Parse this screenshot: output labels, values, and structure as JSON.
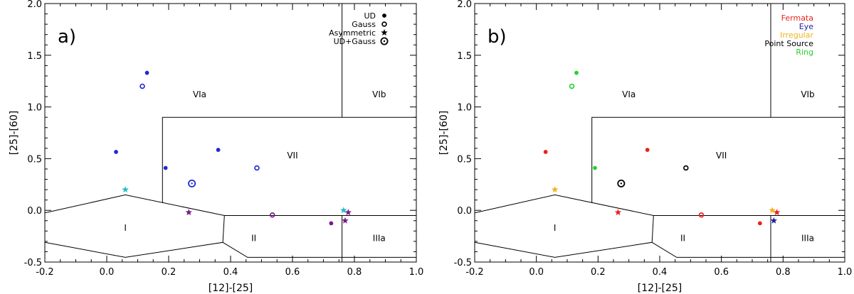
{
  "chart_data": [
    {
      "type": "scatter",
      "panel_label": "a)",
      "xlabel": "[12]-[25]",
      "ylabel": "[25]-[60]",
      "xlim": [
        -0.2,
        1.0
      ],
      "ylim": [
        -0.5,
        2.0
      ],
      "xticks": [
        "-0.2",
        "0.0",
        "0.2",
        "0.4",
        "0.6",
        "0.8",
        "1.0"
      ],
      "yticks": [
        "-0.5",
        "0.0",
        "0.5",
        "1.0",
        "1.5",
        "2.0"
      ],
      "regions": [
        "I",
        "II",
        "IIIa",
        "VIa",
        "VIb",
        "VII"
      ],
      "legend": [
        {
          "label": "UD",
          "marker": "dot"
        },
        {
          "label": "Gauss",
          "marker": "ring"
        },
        {
          "label": "Asymmetric",
          "marker": "star"
        },
        {
          "label": "UD+Gauss",
          "marker": "bigring"
        }
      ],
      "points": [
        {
          "x": 0.13,
          "y": 1.33,
          "marker": "dot",
          "color": "#1f2bd6"
        },
        {
          "x": 0.115,
          "y": 1.2,
          "marker": "ring",
          "color": "#1f2bd6"
        },
        {
          "x": 0.03,
          "y": 0.565,
          "marker": "dot",
          "color": "#1f2bd6"
        },
        {
          "x": 0.36,
          "y": 0.585,
          "marker": "dot",
          "color": "#1f2bd6"
        },
        {
          "x": 0.19,
          "y": 0.41,
          "marker": "dot",
          "color": "#1f2bd6"
        },
        {
          "x": 0.485,
          "y": 0.41,
          "marker": "ring",
          "color": "#1f2bd6"
        },
        {
          "x": 0.275,
          "y": 0.26,
          "marker": "bigring",
          "color": "#1f2bd6"
        },
        {
          "x": 0.06,
          "y": 0.2,
          "marker": "star",
          "color": "#1fbfc6"
        },
        {
          "x": 0.265,
          "y": -0.02,
          "marker": "star",
          "color": "#7a1a8c"
        },
        {
          "x": 0.535,
          "y": -0.045,
          "marker": "ring",
          "color": "#7a1a8c"
        },
        {
          "x": 0.765,
          "y": 0.0,
          "marker": "star",
          "color": "#1fbfc6"
        },
        {
          "x": 0.78,
          "y": -0.02,
          "marker": "star",
          "color": "#7a1a8c"
        },
        {
          "x": 0.77,
          "y": -0.1,
          "marker": "star",
          "color": "#7a1a8c"
        },
        {
          "x": 0.725,
          "y": -0.125,
          "marker": "dot",
          "color": "#7a1a8c"
        }
      ]
    },
    {
      "type": "scatter",
      "panel_label": "b)",
      "xlabel": "[12]-[25]",
      "ylabel": "[25]-[60]",
      "xlim": [
        -0.2,
        1.0
      ],
      "ylim": [
        -0.5,
        2.0
      ],
      "xticks": [
        "-0.2",
        "0.0",
        "0.2",
        "0.4",
        "0.6",
        "0.8",
        "1.0"
      ],
      "yticks": [
        "-0.5",
        "0.0",
        "0.5",
        "1.0",
        "1.5",
        "2.0"
      ],
      "regions": [
        "I",
        "II",
        "IIIa",
        "VIa",
        "VIb",
        "VII"
      ],
      "legend": [
        {
          "label": "Fermata",
          "color": "#e8231b"
        },
        {
          "label": "Eye",
          "color": "#1f1f9c"
        },
        {
          "label": "Irregular",
          "color": "#f0b21b"
        },
        {
          "label": "Point Source",
          "color": "#000000"
        },
        {
          "label": "Ring",
          "color": "#22d42e"
        }
      ],
      "points": [
        {
          "x": 0.13,
          "y": 1.33,
          "marker": "dot",
          "color": "#22d42e"
        },
        {
          "x": 0.115,
          "y": 1.2,
          "marker": "ring",
          "color": "#22d42e"
        },
        {
          "x": 0.03,
          "y": 0.565,
          "marker": "dot",
          "color": "#e8231b"
        },
        {
          "x": 0.36,
          "y": 0.585,
          "marker": "dot",
          "color": "#e8231b"
        },
        {
          "x": 0.19,
          "y": 0.41,
          "marker": "dot",
          "color": "#22d42e"
        },
        {
          "x": 0.485,
          "y": 0.41,
          "marker": "ring",
          "color": "#000000"
        },
        {
          "x": 0.275,
          "y": 0.26,
          "marker": "bigring",
          "color": "#000000"
        },
        {
          "x": 0.06,
          "y": 0.2,
          "marker": "star",
          "color": "#f0b21b"
        },
        {
          "x": 0.265,
          "y": -0.02,
          "marker": "star",
          "color": "#e8231b"
        },
        {
          "x": 0.535,
          "y": -0.045,
          "marker": "ring",
          "color": "#e8231b"
        },
        {
          "x": 0.765,
          "y": 0.0,
          "marker": "star",
          "color": "#f0b21b"
        },
        {
          "x": 0.78,
          "y": -0.02,
          "marker": "star",
          "color": "#e8231b"
        },
        {
          "x": 0.77,
          "y": -0.1,
          "marker": "star",
          "color": "#1f1f9c"
        },
        {
          "x": 0.725,
          "y": -0.125,
          "marker": "dot",
          "color": "#e8231b"
        }
      ]
    }
  ]
}
